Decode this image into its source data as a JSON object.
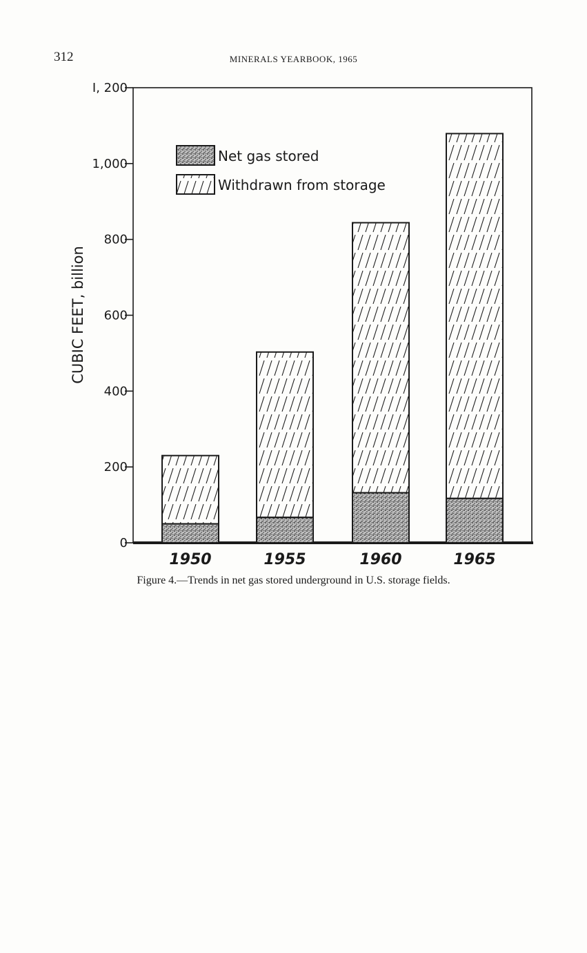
{
  "header": {
    "page_number": "312",
    "running_head": "MINERALS YEARBOOK, 1965"
  },
  "caption": "Figure 4.—Trends in net gas stored underground in U.S. storage fields.",
  "chart_data": {
    "type": "bar",
    "stacked": true,
    "categories": [
      "1950",
      "1955",
      "1960",
      "1965"
    ],
    "series": [
      {
        "name": "Net gas stored",
        "values": [
          50,
          67,
          132,
          117
        ],
        "pattern": "stipple"
      },
      {
        "name": "Withdrawn from storage",
        "values": [
          180,
          436,
          712,
          962
        ],
        "pattern": "hatch"
      }
    ],
    "totals": [
      230,
      503,
      844,
      1079
    ],
    "ylabel": "CUBIC FEET, billion",
    "xlabel": "",
    "ylim": [
      0,
      1200
    ],
    "yticks": [
      0,
      200,
      400,
      600,
      800,
      1000,
      1200
    ],
    "ytick_labels": [
      "0",
      "200",
      "400",
      "600",
      "800",
      "1,000",
      "I, 200"
    ],
    "legend_position": "top-left",
    "grid": false,
    "colors": {
      "ink": "#1a1a1a",
      "paper": "#fdfdfb"
    }
  }
}
